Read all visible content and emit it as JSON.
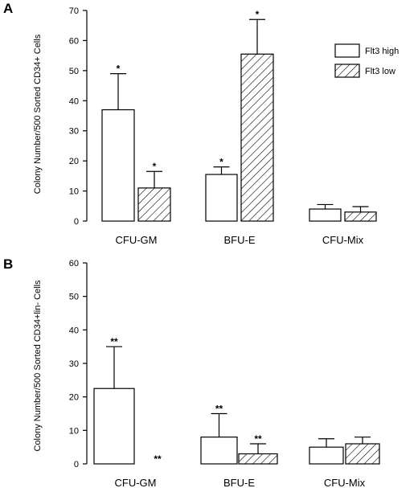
{
  "chart_data": [
    {
      "panel_label": "A",
      "type": "bar",
      "ylabel": "Colony Number/500 Sorted CD34+ Cells",
      "ylim": [
        0,
        70
      ],
      "yticks": [
        0,
        10,
        20,
        30,
        40,
        50,
        60,
        70
      ],
      "categories": [
        "CFU-GM",
        "BFU-E",
        "CFU-Mix"
      ],
      "series": [
        {
          "name": "Flt3 high",
          "pattern": "open",
          "values": [
            37,
            15.5,
            4
          ],
          "errors": [
            12,
            2.5,
            1.5
          ],
          "markers": [
            "*",
            "*",
            ""
          ]
        },
        {
          "name": "Flt3 low",
          "pattern": "hatched",
          "values": [
            11,
            55.5,
            3
          ],
          "errors": [
            5.5,
            11.5,
            1.8
          ],
          "markers": [
            "*",
            "*",
            ""
          ]
        }
      ],
      "legend_position": "top-right"
    },
    {
      "panel_label": "B",
      "type": "bar",
      "ylabel": "Colony Number/500 Sorted CD34+lin- Cells",
      "ylim": [
        0,
        60
      ],
      "yticks": [
        0,
        10,
        20,
        30,
        40,
        50,
        60
      ],
      "categories": [
        "CFU-GM",
        "BFU-E",
        "CFU-Mix"
      ],
      "series": [
        {
          "name": "Flt3 high",
          "pattern": "open",
          "values": [
            22.5,
            8,
            5
          ],
          "errors": [
            12.5,
            7,
            2.5
          ],
          "markers": [
            "**",
            "**",
            ""
          ]
        },
        {
          "name": "Flt3 low",
          "pattern": "hatched",
          "values": [
            0,
            3,
            6
          ],
          "errors": [
            0,
            3,
            2
          ],
          "markers": [
            "**",
            "**",
            ""
          ]
        }
      ]
    }
  ],
  "colors": {
    "bar_stroke": "#000000",
    "bar_fill": "#ffffff",
    "hatch": "#000000"
  }
}
